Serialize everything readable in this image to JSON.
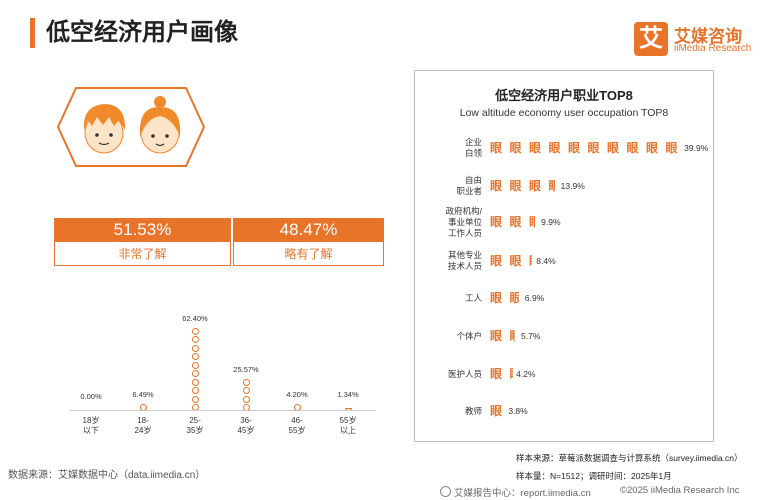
{
  "header": {
    "title": "低空经济用户画像",
    "logo_mark": "艾",
    "logo_cn": "艾媒咨询",
    "logo_en": "iiMedia Research"
  },
  "gender": {
    "items": [
      {
        "pct": "51.53%",
        "label": "非常了解"
      },
      {
        "pct": "48.47%",
        "label": "略有了解"
      }
    ]
  },
  "chart_data": [
    {
      "type": "bar",
      "title": "",
      "categories": [
        "18岁以下",
        "18-24岁",
        "25-35岁",
        "36-45岁",
        "46-55岁",
        "55岁以上"
      ],
      "category_lines": [
        [
          "18岁",
          "以下"
        ],
        [
          "18-",
          "24岁"
        ],
        [
          "25-",
          "35岁"
        ],
        [
          "36-",
          "45岁"
        ],
        [
          "46-",
          "55岁"
        ],
        [
          "55岁",
          "以上"
        ]
      ],
      "values": [
        0.0,
        6.49,
        62.4,
        25.57,
        4.2,
        1.34
      ],
      "value_labels": [
        "0.00%",
        "6.49%",
        "62.40%",
        "25.57%",
        "4.20%",
        "1.34%"
      ],
      "unit": "%"
    },
    {
      "type": "bar",
      "orientation": "horizontal",
      "title": "低空经济用户职业TOP8",
      "subtitle": "Low altitude economy user occupation TOP8",
      "categories": [
        "企业白领",
        "自由职业者",
        "政府机构/事业单位工作人员",
        "其他专业技术人员",
        "工人",
        "个体户",
        "医护人员",
        "教师"
      ],
      "category_lines": [
        [
          "企业",
          "白领"
        ],
        [
          "自由",
          "职业者"
        ],
        [
          "政府机构/",
          "事业单位",
          "工作人员"
        ],
        [
          "其他专业",
          "技术人员"
        ],
        [
          "工人"
        ],
        [
          "个体户"
        ],
        [
          "医护人员"
        ],
        [
          "教师"
        ]
      ],
      "values": [
        39.9,
        13.9,
        9.9,
        8.4,
        6.9,
        5.7,
        4.2,
        3.8
      ],
      "value_labels": [
        "39.9%",
        "13.9%",
        "9.9%",
        "8.4%",
        "6.9%",
        "5.7%",
        "4.2%",
        "3.8%"
      ],
      "unit": "%",
      "glyph": "眼"
    }
  ],
  "footer": {
    "source_left": "数据来源：艾媒数据中心（data.iimedia.cn）",
    "sample_source": "样本来源：草莓派数据调查与计算系统（survey.iimedia.cn）",
    "sample_size": "样本量：N=1512；调研时间：2025年1月",
    "report_center": "艾媒报告中心：report.iimedia.cn",
    "copyright": "©2025  iiMedia Research Inc"
  },
  "colors": {
    "accent": "#e8742a",
    "hair": "#f08a2a",
    "skin": "#fde3c8"
  }
}
